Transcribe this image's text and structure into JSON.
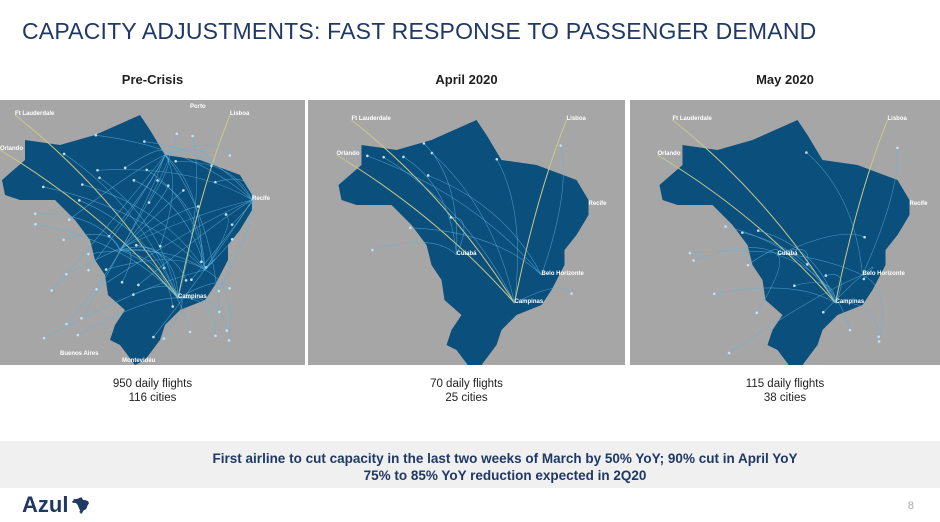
{
  "title": "CAPACITY ADJUSTMENTS: FAST RESPONSE TO PASSENGER DEMAND",
  "colors": {
    "title": "#1f3864",
    "map_land": "#0b4f7c",
    "map_sea": "#a6a6a6",
    "route": "#5fb3e0",
    "intl_route": "#c9c98a"
  },
  "panels": [
    {
      "heading": "Pre-Crisis",
      "flights": "950 daily flights",
      "cities": "116 cities",
      "labels": [
        "Ft Lauderdale",
        "Porto",
        "Lisboa",
        "Orlando",
        "Buenos Aires",
        "Montevidéu",
        "Recife",
        "Campinas"
      ]
    },
    {
      "heading": "April 2020",
      "flights": "70 daily flights",
      "cities": "25 cities",
      "labels": [
        "Ft Lauderdale",
        "Lisboa",
        "Orlando",
        "Recife",
        "Belo Horizonte",
        "Campinas",
        "Cuiabá"
      ]
    },
    {
      "heading": "May 2020",
      "flights": "115 daily flights",
      "cities": "38 cities",
      "labels": [
        "Ft Lauderdale",
        "Lisboa",
        "Orlando",
        "Recife",
        "Belo Horizonte",
        "Campinas",
        "Cuiabá"
      ]
    }
  ],
  "banner": {
    "line1": "First airline to cut capacity in the last two weeks of March by 50% YoY; 90% cut in April YoY",
    "line2": "75% to 85% YoY reduction expected  in 2Q20"
  },
  "footer": {
    "logo": "Azul",
    "page": "8"
  }
}
